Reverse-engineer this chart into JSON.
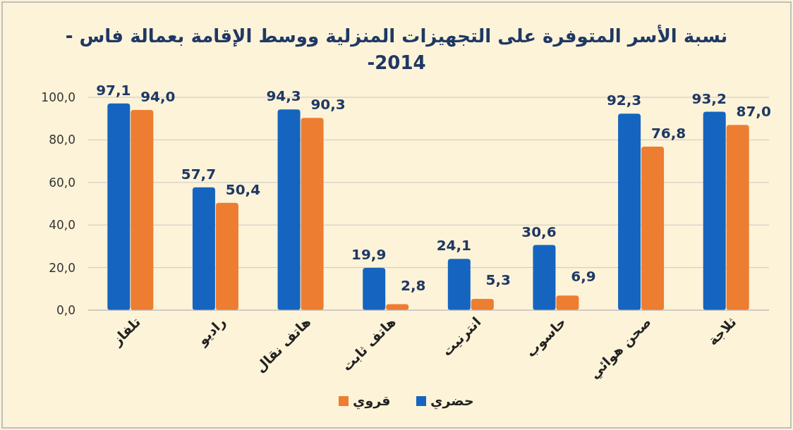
{
  "chart_data": {
    "type": "bar",
    "title": "نسبة الأسر المتوفرة على التجهيزات المنزلية ووسط الإقامة بعمالة فاس - 2014-",
    "categories": [
      "تلفاز",
      "راديو",
      "هاتف نقال",
      "هاتف ثابت",
      "انترنيت",
      "حاسوب",
      "صحن هوائي",
      "ثلاجة"
    ],
    "series": [
      {
        "name": "حضري",
        "color": "#1565c0",
        "values": [
          97.1,
          57.7,
          94.3,
          19.9,
          24.1,
          30.6,
          92.3,
          93.2
        ],
        "value_labels": [
          "97,1",
          "57,7",
          "94,3",
          "19,9",
          "24,1",
          "30,6",
          "92,3",
          "93,2"
        ]
      },
      {
        "name": "قروي",
        "color": "#ed7d31",
        "values": [
          94.0,
          50.4,
          90.3,
          2.8,
          5.3,
          6.9,
          76.8,
          87.0
        ],
        "value_labels": [
          "94,0",
          "50,4",
          "90,3",
          "2,8",
          "5,3",
          "6,9",
          "76,8",
          "87,0"
        ]
      }
    ],
    "ylim": [
      0,
      100
    ],
    "yticks": [
      {
        "value": 0,
        "label": "0,0"
      },
      {
        "value": 20,
        "label": "20,0"
      },
      {
        "value": 40,
        "label": "40,0"
      },
      {
        "value": 60,
        "label": "60,0"
      },
      {
        "value": 80,
        "label": "80,0"
      },
      {
        "value": 100,
        "label": "100,0"
      }
    ],
    "grid": "y",
    "legend": "bottom"
  }
}
